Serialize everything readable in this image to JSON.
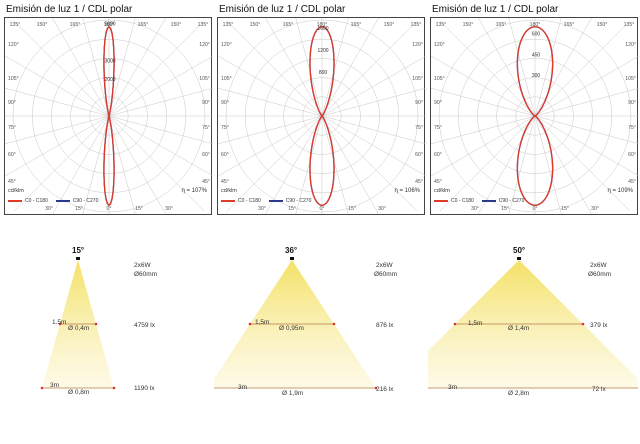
{
  "colors": {
    "c0_c180": "#e03a2a",
    "c90_c270": "#2a3a8c",
    "beam_cone": "#f3e36a",
    "marker": "#d9342b"
  },
  "chart_data": [
    {
      "type": "polar",
      "title": "Emisión de luz 1 / CDL polar",
      "angle_labels_top": [
        "135°",
        "150°",
        "165°",
        "180°",
        "165°",
        "150°",
        "135°"
      ],
      "angle_labels_left": [
        "120°",
        "105°",
        "90°",
        "75°",
        "60°",
        "45°"
      ],
      "angle_labels_right": [
        "120°",
        "105°",
        "90°",
        "75°",
        "60°",
        "45°"
      ],
      "angle_labels_bottom": [
        "30°",
        "15°",
        "0°",
        "15°",
        "30°"
      ],
      "radial_ticks": [
        "5000",
        "3000",
        "2000"
      ],
      "radial_tick_values": [
        5000,
        3000,
        2000
      ],
      "r_max": 5200,
      "unit": "cd/klm",
      "efficiency": "η = 107%",
      "series": [
        {
          "name": "C0 - C180",
          "color_key": "c0_c180",
          "beam_half_angle": 7
        },
        {
          "name": "C90 - C270",
          "color_key": "c90_c270",
          "beam_half_angle": 7
        }
      ]
    },
    {
      "type": "polar",
      "title": "Emisión de luz 1 / CDL polar",
      "angle_labels_top": [
        "135°",
        "150°",
        "165°",
        "180°",
        "165°",
        "150°",
        "135°"
      ],
      "angle_labels_left": [
        "120°",
        "105°",
        "90°",
        "75°",
        "60°",
        "45°"
      ],
      "angle_labels_right": [
        "120°",
        "105°",
        "90°",
        "75°",
        "60°",
        "45°"
      ],
      "angle_labels_bottom": [
        "30°",
        "15°",
        "0°",
        "15°",
        "30°"
      ],
      "radial_ticks": [
        "1600",
        "1200",
        "800"
      ],
      "radial_tick_values": [
        1600,
        1200,
        800
      ],
      "r_max": 1750,
      "unit": "cd/klm",
      "efficiency": "η = 106%",
      "series": [
        {
          "name": "C0 - C180",
          "color_key": "c0_c180",
          "beam_half_angle": 17
        },
        {
          "name": "C90 - C270",
          "color_key": "c90_c270",
          "beam_half_angle": 17
        }
      ]
    },
    {
      "type": "polar",
      "title": "Emisión de luz 1 / CDL polar",
      "angle_labels_top": [
        "135°",
        "150°",
        "165°",
        "180°",
        "165°",
        "150°",
        "135°"
      ],
      "angle_labels_left": [
        "120°",
        "105°",
        "90°",
        "75°",
        "60°",
        "45°"
      ],
      "angle_labels_right": [
        "120°",
        "105°",
        "90°",
        "75°",
        "60°",
        "45°"
      ],
      "angle_labels_bottom": [
        "30°",
        "15°",
        "0°",
        "15°",
        "30°"
      ],
      "radial_ticks": [
        "600",
        "450",
        "300"
      ],
      "radial_tick_values": [
        600,
        450,
        300
      ],
      "r_max": 700,
      "unit": "cd/klm",
      "efficiency": "η = 109%",
      "series": [
        {
          "name": "C0 - C180",
          "color_key": "c0_c180",
          "beam_half_angle": 26
        },
        {
          "name": "C90 - C270",
          "color_key": "c90_c270",
          "beam_half_angle": 26
        }
      ]
    }
  ],
  "beams": [
    {
      "angle": "15°",
      "lamp": "2x6W",
      "diameter": "Ø60mm",
      "near": {
        "distance": "1.5m",
        "spot": "Ø 0,4m",
        "lux": "4759 lx"
      },
      "far": {
        "distance": "3m",
        "spot": "Ø 0,8m",
        "lux": "1190 lx"
      }
    },
    {
      "angle": "36°",
      "lamp": "2x6W",
      "diameter": "Ø60mm",
      "near": {
        "distance": "1,5m",
        "spot": "Ø 0,95m",
        "lux": "876 lx"
      },
      "far": {
        "distance": "3m",
        "spot": "Ø 1,9m",
        "lux": "216 lx"
      }
    },
    {
      "angle": "50°",
      "lamp": "2x6W",
      "diameter": "Ø60mm",
      "near": {
        "distance": "1,5m",
        "spot": "Ø 1,4m",
        "lux": "379 lx"
      },
      "far": {
        "distance": "3m",
        "spot": "Ø 2,8m",
        "lux": "72 lx"
      }
    }
  ]
}
